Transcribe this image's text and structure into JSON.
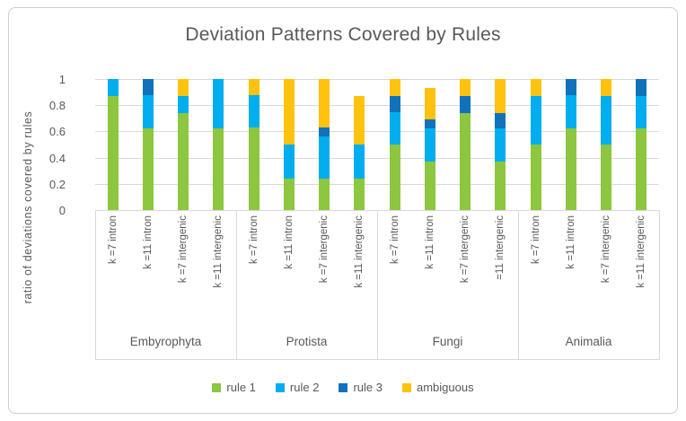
{
  "colors": {
    "text": "#595959",
    "grid": "#d9d9d9",
    "frame_border": "#d0cece",
    "rule1": "#8DC63F",
    "rule2": "#00AEEF",
    "rule3": "#1072BA",
    "ambiguous": "#FFC20E"
  },
  "chart_data": {
    "type": "bar",
    "stacked": true,
    "title": "Deviation Patterns Covered by Rules",
    "ylabel": "ratio of deviations covered by rules",
    "xlabel": "",
    "ylim": [
      0,
      1
    ],
    "yticks": [
      1,
      0.8,
      0.6,
      0.4,
      0.2,
      0
    ],
    "ytick_labels": [
      "1",
      "0.8",
      "0.6",
      "0.4",
      "0.2",
      "0"
    ],
    "grid": true,
    "legend_position": "bottom",
    "series": [
      {
        "name": "rule 1",
        "color": "#8DC63F"
      },
      {
        "name": "rule 2",
        "color": "#00AEEF"
      },
      {
        "name": "rule 3",
        "color": "#1072BA"
      },
      {
        "name": "ambiguous",
        "color": "#FFC20E"
      }
    ],
    "groups": [
      {
        "name": "Embyrophyta",
        "bars": [
          {
            "label": "k =7 intron",
            "values": [
              0.87,
              0.13,
              0,
              0
            ]
          },
          {
            "label": "k =11 intron",
            "values": [
              0.62,
              0.26,
              0.12,
              0
            ]
          },
          {
            "label": "k =7 intergenic",
            "values": [
              0.74,
              0.13,
              0,
              0.13
            ]
          },
          {
            "label": "k =11 intergenic",
            "values": [
              0.62,
              0.38,
              0,
              0
            ]
          }
        ]
      },
      {
        "name": "Protista",
        "bars": [
          {
            "label": "k =7 intron",
            "values": [
              0.63,
              0.25,
              0,
              0.12
            ]
          },
          {
            "label": "k =11 intron",
            "values": [
              0.24,
              0.26,
              0,
              0.5
            ]
          },
          {
            "label": "k =7 intergenic",
            "values": [
              0.24,
              0.32,
              0.07,
              0.37
            ]
          },
          {
            "label": "k =11 intergenic",
            "values": [
              0.24,
              0.26,
              0,
              0.37
            ]
          }
        ]
      },
      {
        "name": "Fungi",
        "bars": [
          {
            "label": "k =7 intron",
            "values": [
              0.5,
              0.25,
              0.12,
              0.13
            ]
          },
          {
            "label": "k =11 intron",
            "values": [
              0.37,
              0.25,
              0.07,
              0.24
            ]
          },
          {
            "label": "k =7 intergenic",
            "values": [
              0.74,
              0,
              0.13,
              0.13
            ]
          },
          {
            "label": "=11 intergenic",
            "values": [
              0.37,
              0.25,
              0.12,
              0.26
            ]
          }
        ]
      },
      {
        "name": "Animalia",
        "bars": [
          {
            "label": "k =7 intron",
            "values": [
              0.5,
              0.37,
              0,
              0.13
            ]
          },
          {
            "label": "k =11 intron",
            "values": [
              0.62,
              0.26,
              0.12,
              0
            ]
          },
          {
            "label": "k =7 intergenic",
            "values": [
              0.5,
              0.37,
              0,
              0.13
            ]
          },
          {
            "label": "k =11 intergenic",
            "values": [
              0.62,
              0.25,
              0.13,
              0
            ]
          }
        ]
      }
    ]
  }
}
